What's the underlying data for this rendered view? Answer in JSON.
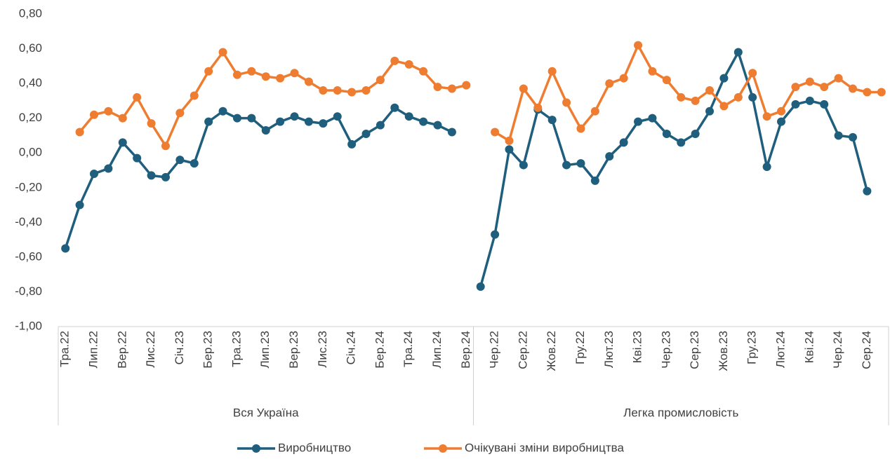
{
  "chart_data": {
    "type": "line",
    "groups": [
      {
        "label": "Вся Україна",
        "categories": [
          "Тра.22",
          null,
          "Лип.22",
          null,
          "Вер.22",
          null,
          "Лис.22",
          null,
          "Січ.23",
          null,
          "Бер.23",
          null,
          "Тра.23",
          null,
          "Лип.23",
          null,
          "Вер.23",
          null,
          "Лис.23",
          null,
          "Січ.24",
          null,
          "Бер.24",
          null,
          "Тра.24",
          null,
          "Лип.24",
          null,
          "Вер.24"
        ]
      },
      {
        "label": "Легка промисловість",
        "categories": [
          null,
          "Чер.22",
          null,
          "Сер.22",
          null,
          "Жов.22",
          null,
          "Гру.22",
          null,
          "Лют.23",
          null,
          "Кві.23",
          null,
          "Чер.23",
          null,
          "Сер.23",
          null,
          "Жов.23",
          null,
          "Гру.23",
          null,
          "Лют.24",
          null,
          "Кві.24",
          null,
          "Чер.24",
          null,
          "Сер.24",
          null
        ]
      }
    ],
    "series": [
      {
        "name": "Виробництво",
        "color": "#1f5f7d",
        "values": [
          -0.55,
          -0.3,
          -0.12,
          -0.09,
          0.06,
          -0.03,
          -0.13,
          -0.14,
          -0.04,
          -0.06,
          0.18,
          0.24,
          0.2,
          0.2,
          0.13,
          0.18,
          0.21,
          0.18,
          0.17,
          0.21,
          0.05,
          0.11,
          0.16,
          0.26,
          0.21,
          0.18,
          0.16,
          0.12,
          null,
          -0.77,
          -0.47,
          0.02,
          -0.07,
          0.25,
          0.19,
          -0.07,
          -0.06,
          -0.16,
          -0.02,
          0.06,
          0.18,
          0.2,
          0.11,
          0.06,
          0.11,
          0.24,
          0.43,
          0.58,
          0.32,
          -0.08,
          0.18,
          0.28,
          0.3,
          0.28,
          0.1,
          0.09,
          -0.22,
          null
        ]
      },
      {
        "name": "Очікувані зміни виробництва",
        "color": "#ee7d31",
        "values": [
          null,
          0.12,
          0.22,
          0.24,
          0.2,
          0.32,
          0.17,
          0.04,
          0.23,
          0.33,
          0.47,
          0.58,
          0.45,
          0.47,
          0.44,
          0.43,
          0.46,
          0.41,
          0.36,
          0.36,
          0.35,
          0.36,
          0.42,
          0.53,
          0.51,
          0.47,
          0.38,
          0.37,
          0.39,
          null,
          0.12,
          0.07,
          0.37,
          0.26,
          0.47,
          0.29,
          0.14,
          0.24,
          0.4,
          0.43,
          0.62,
          0.47,
          0.42,
          0.32,
          0.3,
          0.36,
          0.27,
          0.32,
          0.46,
          0.21,
          0.24,
          0.38,
          0.41,
          0.38,
          0.43,
          0.37,
          0.35,
          0.35
        ]
      }
    ],
    "ylim": [
      -1,
      0.8
    ],
    "yticks": [
      {
        "value": 0.8,
        "label": "0,80"
      },
      {
        "value": 0.6,
        "label": "0,60"
      },
      {
        "value": 0.4,
        "label": "0,40"
      },
      {
        "value": 0.2,
        "label": "0,20"
      },
      {
        "value": 0,
        "label": "0,00"
      },
      {
        "value": -0.2,
        "label": "-0,20"
      },
      {
        "value": -0.4,
        "label": "-0,40"
      },
      {
        "value": -0.6,
        "label": "-0,60"
      },
      {
        "value": -0.8,
        "label": "-0,80"
      },
      {
        "value": -1,
        "label": "-1,00"
      }
    ],
    "grid": false,
    "legend": "bottom"
  }
}
